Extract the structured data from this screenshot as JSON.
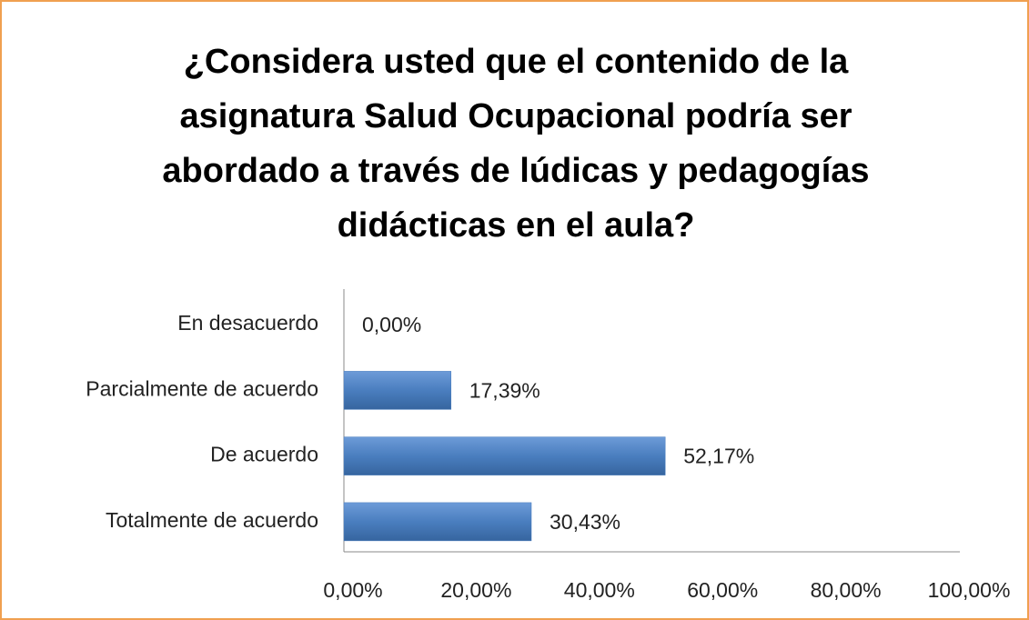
{
  "chart_data": {
    "type": "hbar",
    "title": "¿Considera usted que el contenido de la asignatura Salud Ocupacional podría ser abordado a través de lúdicas y pedagogías didácticas en el aula?",
    "categories": [
      "En desacuerdo",
      "Parcialmente de acuerdo",
      "De acuerdo",
      "Totalmente de acuerdo"
    ],
    "values": [
      0,
      17.39,
      52.17,
      30.43
    ],
    "value_labels": [
      "0,00%",
      "17,39%",
      "52,17%",
      "30,43%"
    ],
    "color": "#4a7ebf",
    "xlim": [
      0,
      100
    ],
    "xticks": [
      {
        "value": 0,
        "label": "0,00%"
      },
      {
        "value": 20,
        "label": "20,00%"
      },
      {
        "value": 40,
        "label": "40,00%"
      },
      {
        "value": 60,
        "label": "60,00%"
      },
      {
        "value": 80,
        "label": "80,00%"
      },
      {
        "value": 100,
        "label": "100,00%"
      }
    ],
    "grid": false
  }
}
